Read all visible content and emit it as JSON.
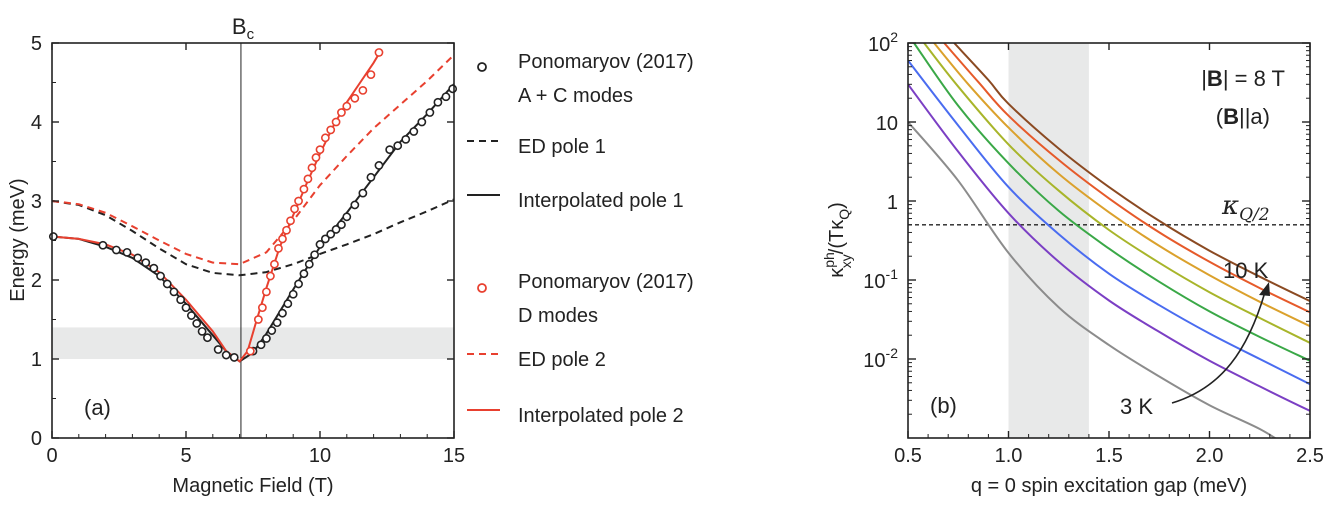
{
  "chart_data": [
    {
      "type": "line",
      "panel_label": "(a)",
      "xlabel": "Magnetic Field (T)",
      "ylabel": "Energy (meV)",
      "xlim": [
        0,
        15
      ],
      "ylim": [
        0,
        5
      ],
      "xticks": [
        "0",
        "5",
        "10",
        "15"
      ],
      "yticks": [
        "0",
        "1",
        "2",
        "3",
        "4",
        "5"
      ],
      "critical_field": {
        "label": "B",
        "subscript": "c",
        "x": 7.05
      },
      "shaded_band": {
        "y": [
          1.0,
          1.4
        ]
      },
      "series": [
        {
          "name": "Ponomaryov (2017) A + C modes",
          "kind": "markers",
          "color": "#222222",
          "points": [
            [
              0.05,
              2.55
            ],
            [
              1.9,
              2.44
            ],
            [
              2.4,
              2.38
            ],
            [
              2.8,
              2.35
            ],
            [
              3.2,
              2.28
            ],
            [
              3.5,
              2.22
            ],
            [
              3.8,
              2.15
            ],
            [
              4.05,
              2.05
            ],
            [
              4.3,
              1.95
            ],
            [
              4.55,
              1.85
            ],
            [
              4.8,
              1.75
            ],
            [
              5.0,
              1.65
            ],
            [
              5.2,
              1.55
            ],
            [
              5.4,
              1.45
            ],
            [
              5.6,
              1.35
            ],
            [
              5.8,
              1.27
            ],
            [
              6.2,
              1.12
            ],
            [
              6.5,
              1.05
            ],
            [
              6.8,
              1.02
            ],
            [
              7.5,
              1.1
            ],
            [
              7.8,
              1.18
            ],
            [
              8.0,
              1.26
            ],
            [
              8.2,
              1.36
            ],
            [
              8.4,
              1.46
            ],
            [
              8.6,
              1.58
            ],
            [
              8.8,
              1.7
            ],
            [
              9.0,
              1.82
            ],
            [
              9.2,
              1.95
            ],
            [
              9.4,
              2.08
            ],
            [
              9.6,
              2.2
            ],
            [
              9.8,
              2.32
            ],
            [
              10.0,
              2.45
            ],
            [
              10.2,
              2.52
            ],
            [
              10.4,
              2.58
            ],
            [
              10.6,
              2.64
            ],
            [
              10.8,
              2.7
            ],
            [
              11.0,
              2.8
            ],
            [
              11.3,
              2.95
            ],
            [
              11.6,
              3.1
            ],
            [
              11.9,
              3.3
            ],
            [
              12.2,
              3.45
            ],
            [
              12.6,
              3.65
            ],
            [
              12.9,
              3.7
            ],
            [
              13.2,
              3.78
            ],
            [
              13.5,
              3.88
            ],
            [
              13.8,
              4.0
            ],
            [
              14.1,
              4.12
            ],
            [
              14.4,
              4.25
            ],
            [
              14.7,
              4.32
            ],
            [
              14.95,
              4.42
            ]
          ]
        },
        {
          "name": "ED pole 1",
          "kind": "dashed",
          "color": "#222222",
          "points": [
            [
              0,
              3.0
            ],
            [
              1,
              2.95
            ],
            [
              2,
              2.82
            ],
            [
              3,
              2.62
            ],
            [
              4,
              2.4
            ],
            [
              5,
              2.2
            ],
            [
              6,
              2.09
            ],
            [
              7,
              2.06
            ],
            [
              8,
              2.1
            ],
            [
              9,
              2.2
            ],
            [
              10,
              2.33
            ],
            [
              11,
              2.45
            ],
            [
              12,
              2.58
            ],
            [
              13,
              2.73
            ],
            [
              14,
              2.87
            ],
            [
              15,
              3.02
            ]
          ]
        },
        {
          "name": "Interpolated pole 1",
          "kind": "solid",
          "color": "#222222",
          "points": [
            [
              0,
              2.55
            ],
            [
              1,
              2.52
            ],
            [
              2,
              2.42
            ],
            [
              3,
              2.28
            ],
            [
              4,
              2.05
            ],
            [
              5,
              1.7
            ],
            [
              6,
              1.3
            ],
            [
              6.5,
              1.1
            ],
            [
              7,
              0.97
            ],
            [
              7.5,
              1.08
            ],
            [
              8,
              1.32
            ],
            [
              9,
              1.88
            ],
            [
              10,
              2.42
            ],
            [
              11,
              2.85
            ],
            [
              12,
              3.3
            ],
            [
              13,
              3.75
            ],
            [
              14,
              4.1
            ],
            [
              15,
              4.48
            ]
          ]
        },
        {
          "name": "Ponomaryov (2017) D modes",
          "kind": "markers",
          "color": "#e8402f",
          "points": [
            [
              7.4,
              1.1
            ],
            [
              7.7,
              1.5
            ],
            [
              7.85,
              1.65
            ],
            [
              8.0,
              1.85
            ],
            [
              8.15,
              2.05
            ],
            [
              8.3,
              2.2
            ],
            [
              8.45,
              2.4
            ],
            [
              8.6,
              2.52
            ],
            [
              8.75,
              2.63
            ],
            [
              8.9,
              2.75
            ],
            [
              9.05,
              2.9
            ],
            [
              9.2,
              3.0
            ],
            [
              9.4,
              3.15
            ],
            [
              9.55,
              3.28
            ],
            [
              9.7,
              3.42
            ],
            [
              9.85,
              3.55
            ],
            [
              10.0,
              3.65
            ],
            [
              10.2,
              3.8
            ],
            [
              10.4,
              3.9
            ],
            [
              10.6,
              4.0
            ],
            [
              10.8,
              4.12
            ],
            [
              11.0,
              4.2
            ],
            [
              11.3,
              4.3
            ],
            [
              11.6,
              4.4
            ],
            [
              11.9,
              4.6
            ],
            [
              12.2,
              4.88
            ]
          ]
        },
        {
          "name": "ED pole 2",
          "kind": "dashed",
          "color": "#e8402f",
          "points": [
            [
              0,
              3.0
            ],
            [
              1,
              2.96
            ],
            [
              2,
              2.85
            ],
            [
              3,
              2.68
            ],
            [
              4,
              2.5
            ],
            [
              5,
              2.33
            ],
            [
              6,
              2.22
            ],
            [
              7,
              2.2
            ],
            [
              8,
              2.35
            ],
            [
              9,
              2.75
            ],
            [
              10,
              3.2
            ],
            [
              11,
              3.57
            ],
            [
              12,
              3.92
            ],
            [
              13,
              4.22
            ],
            [
              14,
              4.52
            ],
            [
              15,
              4.85
            ]
          ]
        },
        {
          "name": "Interpolated pole 2",
          "kind": "solid",
          "color": "#e8402f",
          "points": [
            [
              0,
              2.55
            ],
            [
              1,
              2.52
            ],
            [
              2,
              2.45
            ],
            [
              3,
              2.32
            ],
            [
              4,
              2.1
            ],
            [
              5,
              1.75
            ],
            [
              6,
              1.35
            ],
            [
              6.5,
              1.1
            ],
            [
              7,
              0.97
            ],
            [
              7.3,
              1.1
            ],
            [
              7.6,
              1.45
            ],
            [
              8,
              1.9
            ],
            [
              8.5,
              2.42
            ],
            [
              9,
              2.82
            ],
            [
              9.5,
              3.22
            ],
            [
              10,
              3.6
            ],
            [
              10.5,
              3.95
            ],
            [
              11,
              4.25
            ],
            [
              11.5,
              4.5
            ],
            [
              12,
              4.75
            ],
            [
              12.3,
              4.92
            ]
          ]
        }
      ],
      "legend": [
        {
          "line1": "Ponomaryov (2017)",
          "line2": "A + C modes",
          "series": 0
        },
        {
          "line1": "ED pole 1",
          "series": 1
        },
        {
          "line1": "Interpolated pole 1",
          "series": 2
        },
        {
          "line1": "Ponomaryov (2017)",
          "line2": "D modes",
          "series": 3
        },
        {
          "line1": "ED pole 2",
          "series": 4
        },
        {
          "line1": "Interpolated pole 2",
          "series": 5
        }
      ]
    },
    {
      "type": "line",
      "panel_label": "(b)",
      "xlabel": "q = 0 spin excitation gap (meV)",
      "ylabel_parts": {
        "kappa": "κ",
        "sup": "ph",
        "sub": "xy",
        "rest_open": "/(Tκ",
        "rest_sub": "Q",
        "rest_close": ")"
      },
      "xlim": [
        0.5,
        2.5
      ],
      "ylim_log": [
        0.001,
        100
      ],
      "yscale": "log",
      "xticks": [
        "0.5",
        "1.0",
        "1.5",
        "2.0",
        "2.5"
      ],
      "yticks": [
        {
          "value": 100,
          "base": "10",
          "exp": "2"
        },
        {
          "value": 10,
          "base": "10",
          "exp": ""
        },
        {
          "value": 1,
          "base": "1",
          "exp": ""
        },
        {
          "value": 0.1,
          "base": "10",
          "exp": "-1"
        },
        {
          "value": 0.01,
          "base": "10",
          "exp": "-2"
        }
      ],
      "shaded_band": {
        "x": [
          1.0,
          1.4
        ]
      },
      "reference_line": {
        "y": 0.5,
        "label_main": "κ",
        "label_sub": "Q/2"
      },
      "annotations": {
        "field_line1_pre": "|",
        "field_line1_bold": "B",
        "field_line1_post": "| = 8 T",
        "field_line2_pre": "(",
        "field_line2_bold": "B",
        "field_line2_post": "||a)",
        "low_T": "3 K",
        "high_T": "10 K"
      },
      "series": [
        {
          "T": 3,
          "color": "#8c8c8c",
          "points": [
            [
              0.5,
              10
            ],
            [
              0.75,
              1.8
            ],
            [
              1.0,
              0.22
            ],
            [
              1.25,
              0.045
            ],
            [
              1.5,
              0.015
            ],
            [
              1.75,
              0.006
            ],
            [
              2.0,
              0.0026
            ],
            [
              2.25,
              0.0013
            ],
            [
              2.4,
              0.00075
            ]
          ]
        },
        {
          "T": 4,
          "color": "#7b3fc4",
          "points": [
            [
              0.5,
              30
            ],
            [
              0.75,
              4.2
            ],
            [
              1.0,
              0.7
            ],
            [
              1.25,
              0.17
            ],
            [
              1.5,
              0.055
            ],
            [
              1.75,
              0.022
            ],
            [
              2.0,
              0.0095
            ],
            [
              2.25,
              0.0045
            ],
            [
              2.5,
              0.0022
            ]
          ]
        },
        {
          "T": 5,
          "color": "#4a6cf0",
          "points": [
            [
              0.5,
              60
            ],
            [
              0.75,
              9
            ],
            [
              1.0,
              1.5
            ],
            [
              1.25,
              0.38
            ],
            [
              1.5,
              0.12
            ],
            [
              1.75,
              0.048
            ],
            [
              2.0,
              0.021
            ],
            [
              2.25,
              0.01
            ],
            [
              2.5,
              0.0048
            ]
          ]
        },
        {
          "T": 6,
          "color": "#3aa847",
          "points": [
            [
              0.53,
              100
            ],
            [
              0.75,
              16
            ],
            [
              1.0,
              3
            ],
            [
              1.25,
              0.75
            ],
            [
              1.5,
              0.25
            ],
            [
              1.75,
              0.095
            ],
            [
              2.0,
              0.04
            ],
            [
              2.25,
              0.019
            ],
            [
              2.5,
              0.0095
            ]
          ]
        },
        {
          "T": 7,
          "color": "#a8b52a",
          "points": [
            [
              0.58,
              100
            ],
            [
              0.75,
              28
            ],
            [
              1.0,
              5.2
            ],
            [
              1.25,
              1.35
            ],
            [
              1.5,
              0.43
            ],
            [
              1.75,
              0.165
            ],
            [
              2.0,
              0.07
            ],
            [
              2.25,
              0.033
            ],
            [
              2.5,
              0.016
            ]
          ]
        },
        {
          "T": 8,
          "color": "#dba12c",
          "points": [
            [
              0.63,
              100
            ],
            [
              0.8,
              30
            ],
            [
              1.0,
              8.5
            ],
            [
              1.25,
              2.2
            ],
            [
              1.5,
              0.72
            ],
            [
              1.75,
              0.27
            ],
            [
              2.0,
              0.115
            ],
            [
              2.25,
              0.053
            ],
            [
              2.5,
              0.026
            ]
          ]
        },
        {
          "T": 9,
          "color": "#e65a2a",
          "points": [
            [
              0.68,
              100
            ],
            [
              0.85,
              32
            ],
            [
              1.0,
              12
            ],
            [
              1.25,
              3.3
            ],
            [
              1.5,
              1.08
            ],
            [
              1.75,
              0.4
            ],
            [
              2.0,
              0.17
            ],
            [
              2.25,
              0.079
            ],
            [
              2.5,
              0.039
            ]
          ]
        },
        {
          "T": 10,
          "color": "#8b4a22",
          "points": [
            [
              0.73,
              100
            ],
            [
              0.9,
              34
            ],
            [
              1.0,
              17
            ],
            [
              1.25,
              4.6
            ],
            [
              1.5,
              1.5
            ],
            [
              1.75,
              0.56
            ],
            [
              2.0,
              0.235
            ],
            [
              2.25,
              0.11
            ],
            [
              2.5,
              0.054
            ]
          ]
        }
      ]
    }
  ]
}
